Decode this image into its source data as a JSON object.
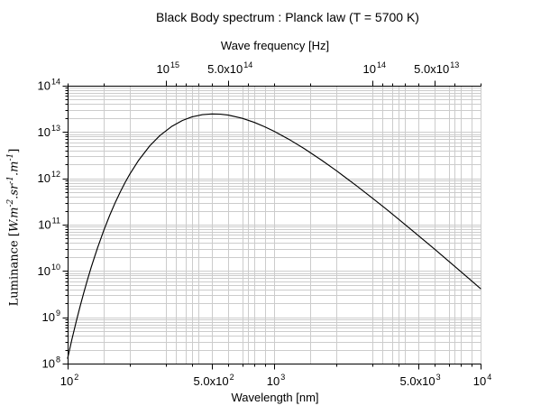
{
  "title": "Black Body spectrum : Planck law (T = 5700 K)",
  "colors": {
    "background": "#ffffff",
    "curve": "#000000",
    "grid": "#cccccc",
    "axis": "#000000",
    "text": "#000000"
  },
  "ylabel_parts": {
    "prefix": "Luminance [",
    "u1": "W.m",
    "s1": "-2",
    "u2": ".sr",
    "s2": "-1",
    "u3": ".m",
    "s3": "-1",
    "suffix": "]"
  },
  "chart_data": {
    "type": "line",
    "title": "Black Body spectrum : Planck law (T = 5700 K)",
    "temperature_K": 5700,
    "xlabel": "Wavelength [nm]",
    "x2label": "Wave frequency [Hz]",
    "ylabel": "Luminance [W.m^-2.sr^-1.m^-1]",
    "xscale": "log",
    "yscale": "log",
    "xlim": [
      100,
      10000
    ],
    "ylim": [
      100000000.0,
      100000000000000.0
    ],
    "grid": true,
    "legend": "none",
    "c_nm_hz": 3e+17,
    "x_major_ticks": [
      {
        "value": 100,
        "base": "10",
        "exp": "2"
      },
      {
        "value": 500,
        "base": "5.0x10",
        "exp": "2"
      },
      {
        "value": 1000,
        "base": "10",
        "exp": "3"
      },
      {
        "value": 5000,
        "base": "5.0x10",
        "exp": "3"
      },
      {
        "value": 10000,
        "base": "10",
        "exp": "4"
      }
    ],
    "x2_major_ticks": [
      {
        "value": 1000000000000000.0,
        "base": "10",
        "exp": "15"
      },
      {
        "value": 500000000000000.0,
        "base": "5.0x10",
        "exp": "14"
      },
      {
        "value": 100000000000000.0,
        "base": "10",
        "exp": "14"
      },
      {
        "value": 50000000000000.0,
        "base": "5.0x10",
        "exp": "13"
      }
    ],
    "y_major_ticks": [
      {
        "value": 100000000000000.0,
        "base": "10",
        "exp": "14"
      },
      {
        "value": 10000000000000.0,
        "base": "10",
        "exp": "13"
      },
      {
        "value": 1000000000000.0,
        "base": "10",
        "exp": "12"
      },
      {
        "value": 100000000000.0,
        "base": "10",
        "exp": "11"
      },
      {
        "value": 10000000000.0,
        "base": "10",
        "exp": "10"
      },
      {
        "value": 1000000000.0,
        "base": "10",
        "exp": "9"
      },
      {
        "value": 100000000.0,
        "base": "10",
        "exp": "8"
      }
    ],
    "minor_mantissas_x": [
      2,
      3,
      4,
      6,
      7,
      8,
      9
    ],
    "minor_mantissas_y": [
      2,
      3,
      4,
      5,
      6,
      7,
      8,
      9
    ],
    "series": [
      {
        "name": "Planck law T = 5700 K",
        "x": [
          100,
          105,
          110,
          115,
          120,
          125,
          130,
          135,
          140,
          150,
          160,
          170,
          180,
          190,
          200,
          220,
          250,
          280,
          320,
          360,
          400,
          450,
          500,
          550,
          600,
          700,
          800,
          900,
          1000,
          1200,
          1400,
          1700,
          2000,
          2500,
          3000,
          3500,
          4000,
          5000,
          6000,
          7000,
          8000,
          10000
        ],
        "y": [
          130000000.0,
          339000000.0,
          800000000.0,
          1740000000.0,
          3510000000.0,
          6630000000.0,
          11900000000.0,
          20100000000.0,
          32700000000.0,
          77100000000.0,
          160000000000.0,
          299000000000.0,
          512000000000.0,
          818000000000.0,
          1230000000000.0,
          2400000000000.0,
          5030000000000.0,
          8420000000000.0,
          13300000000000.0,
          17800000000000.0,
          21200000000000.0,
          23700000000000.0,
          24600000000000.0,
          24300000000000.0,
          23200000000000.0,
          19800000000000.0,
          16200000000000.0,
          13000000000000.0,
          10400000000000.0,
          6650000000000.0,
          4370000000000.0,
          2460000000000.0,
          1470000000000.0,
          699000000000.0,
          371000000000.0,
          215000000000.0,
          132000000000.0,
          58000000000.0,
          29300000000.0,
          16300000000.0,
          9800000000.0,
          4150000000.0
        ]
      }
    ]
  }
}
